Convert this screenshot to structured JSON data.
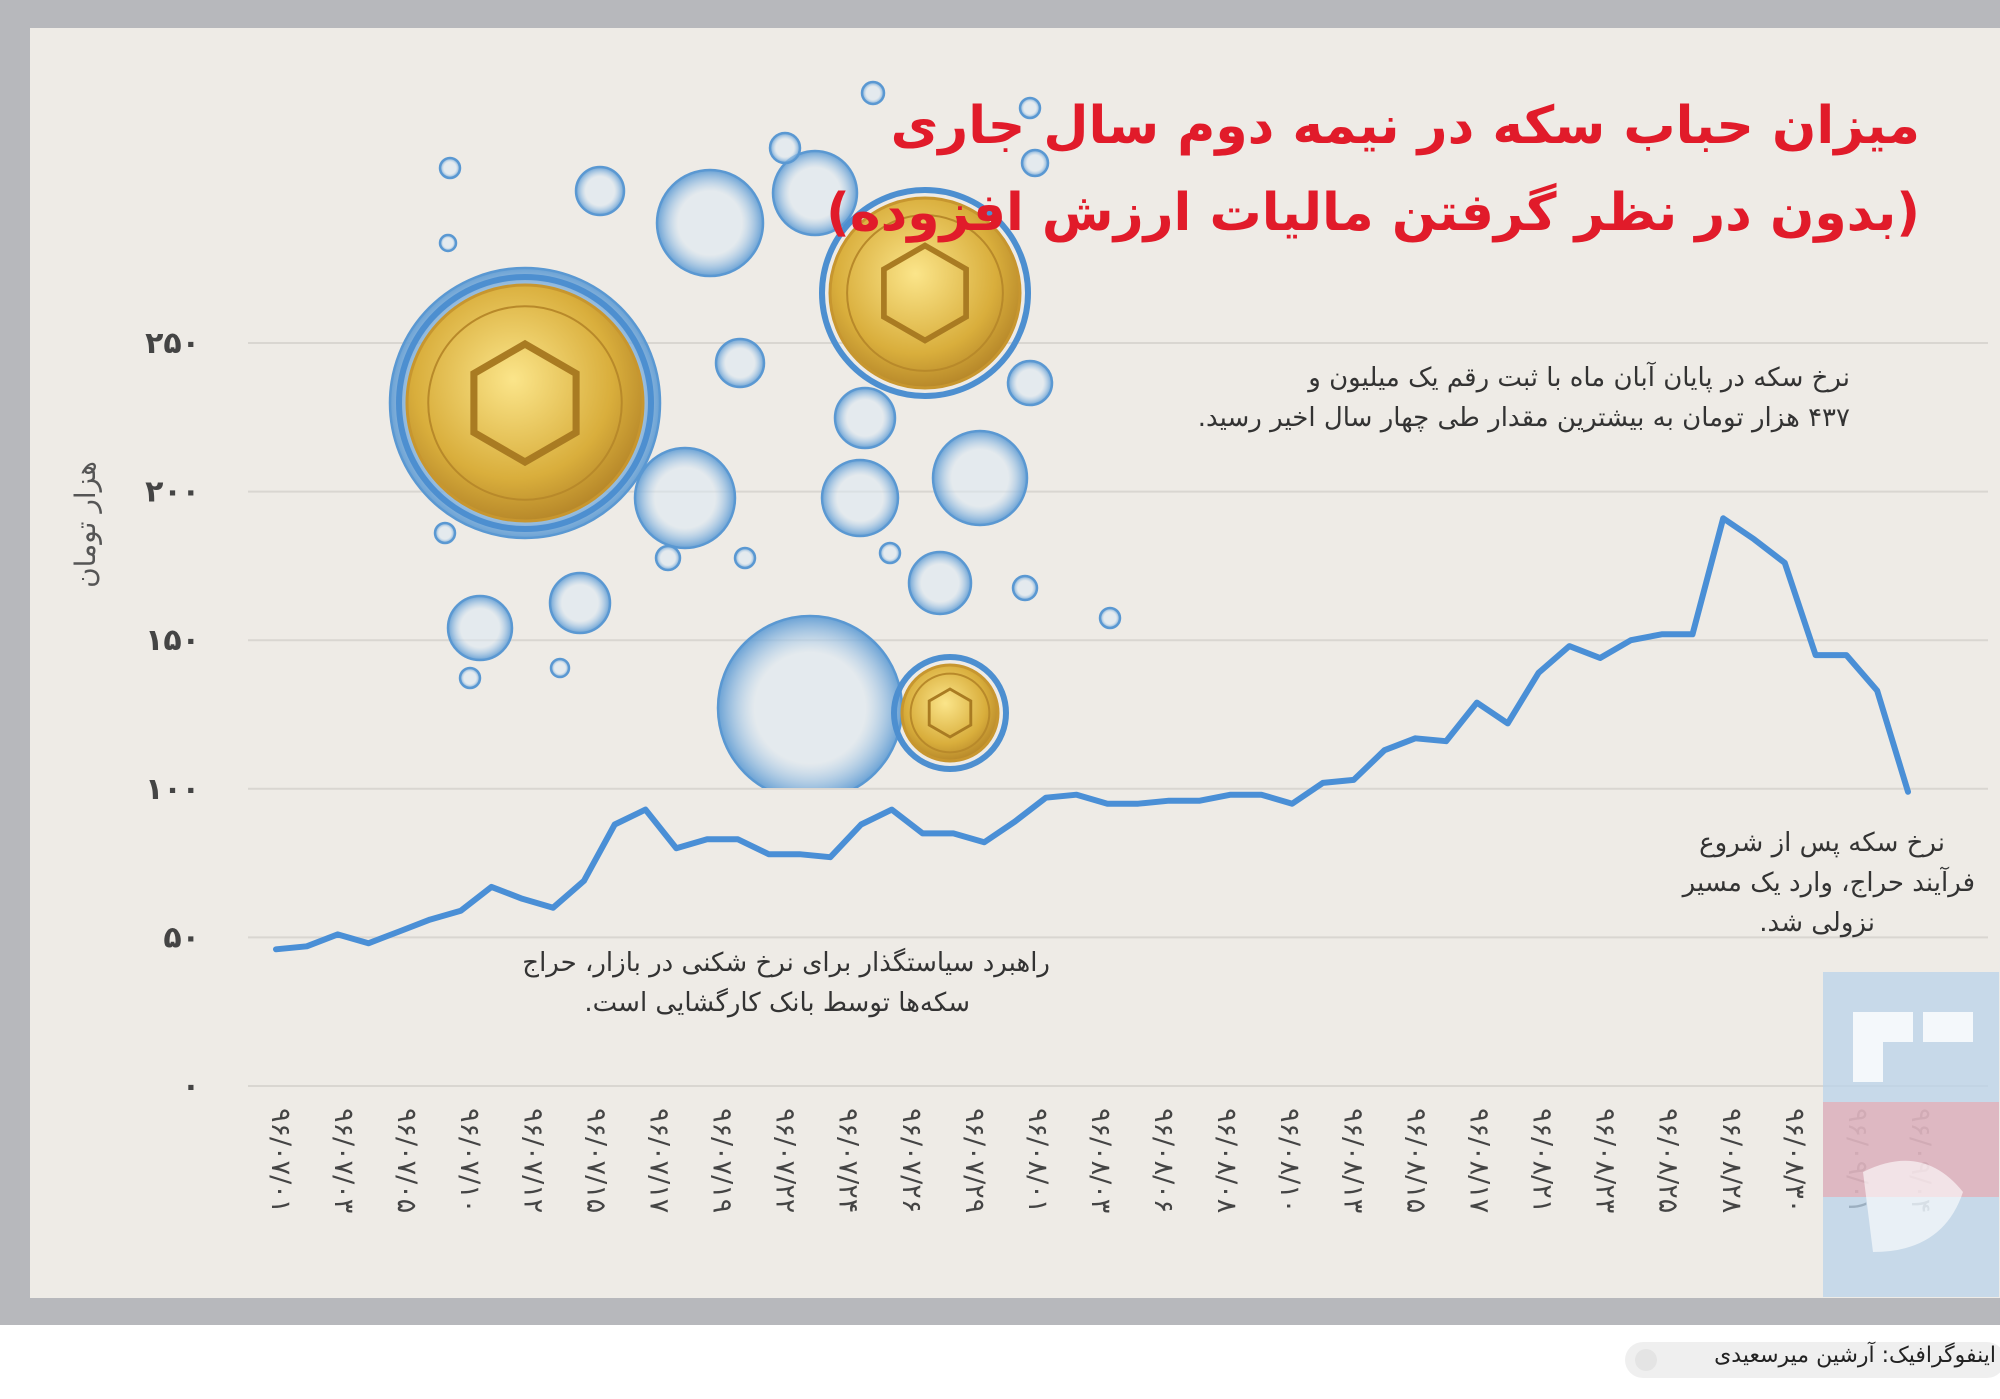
{
  "title_line1": "میزان حباب سکه در نیمه دوم سال جاری",
  "title_line2": "(بدون در نظر گرفتن مالیات ارزش افزوده)",
  "notes": {
    "top_line1": "نرخ سکه در پایان آبان ماه با ثبت رقم یک میلیون و",
    "top_line2": "۴۳۷ هزار تومان به بیشترین مقدار طی چهار سال اخیر رسید.",
    "bottom_line1": "راهبرد سیاستگذار برای نرخ شکنی در بازار، حراج",
    "bottom_line2": "سکه‌ها توسط بانک کارگشایی است.",
    "right_line1": "نرخ سکه پس از شروع",
    "right_line2": "فرآیند حراج، وارد یک مسیر",
    "right_line3": "نزولی شد."
  },
  "credit": "اینفوگرافیک: آرشین میرسعیدی",
  "colors": {
    "title": "#e11b2a",
    "line": "#4a8fd6",
    "grid": "#d9d6d1",
    "text": "#333333"
  },
  "chart_data": {
    "type": "line",
    "ylabel": "هزار تومان",
    "ylim": [
      0,
      250
    ],
    "yticks": [
      0,
      50,
      100,
      150,
      200,
      250
    ],
    "ytick_labels": [
      "۰",
      "۵۰",
      "۱۰۰",
      "۱۵۰",
      "۲۰۰",
      "۲۵۰"
    ],
    "grid": true,
    "x_labels": [
      "۹۶/۰۷/۰۱",
      "۹۶/۰۷/۰۳",
      "۹۶/۰۷/۰۵",
      "۹۶/۰۷/۱۰",
      "۹۶/۰۷/۱۲",
      "۹۶/۰۷/۱۵",
      "۹۶/۰۷/۱۷",
      "۹۶/۰۷/۱۹",
      "۹۶/۰۷/۲۲",
      "۹۶/۰۷/۲۴",
      "۹۶/۰۷/۲۶",
      "۹۶/۰۷/۲۹",
      "۹۶/۰۸/۰۱",
      "۹۶/۰۸/۰۳",
      "۹۶/۰۸/۰۶",
      "۹۶/۰۸/۰۸",
      "۹۶/۰۸/۱۰",
      "۹۶/۰۸/۱۳",
      "۹۶/۰۸/۱۵",
      "۹۶/۰۸/۱۷",
      "۹۶/۰۸/۲۱",
      "۹۶/۰۸/۲۳",
      "۹۶/۰۸/۲۵",
      "۹۶/۰۸/۲۸",
      "۹۶/۰۸/۳۰",
      "۹۶/۰۹/۰۱",
      "۹۶/۰۹/۰۴"
    ],
    "values": [
      46,
      47,
      51,
      48,
      52,
      56,
      59,
      67,
      63,
      60,
      69,
      88,
      93,
      80,
      83,
      83,
      78,
      78,
      77,
      88,
      93,
      85,
      85,
      82,
      89,
      97,
      98,
      95,
      95,
      96,
      96,
      98,
      98,
      95,
      102,
      103,
      113,
      117,
      116,
      129,
      122,
      139,
      148,
      144,
      150,
      152,
      152,
      191,
      184,
      176,
      145,
      145,
      133,
      99
    ]
  }
}
